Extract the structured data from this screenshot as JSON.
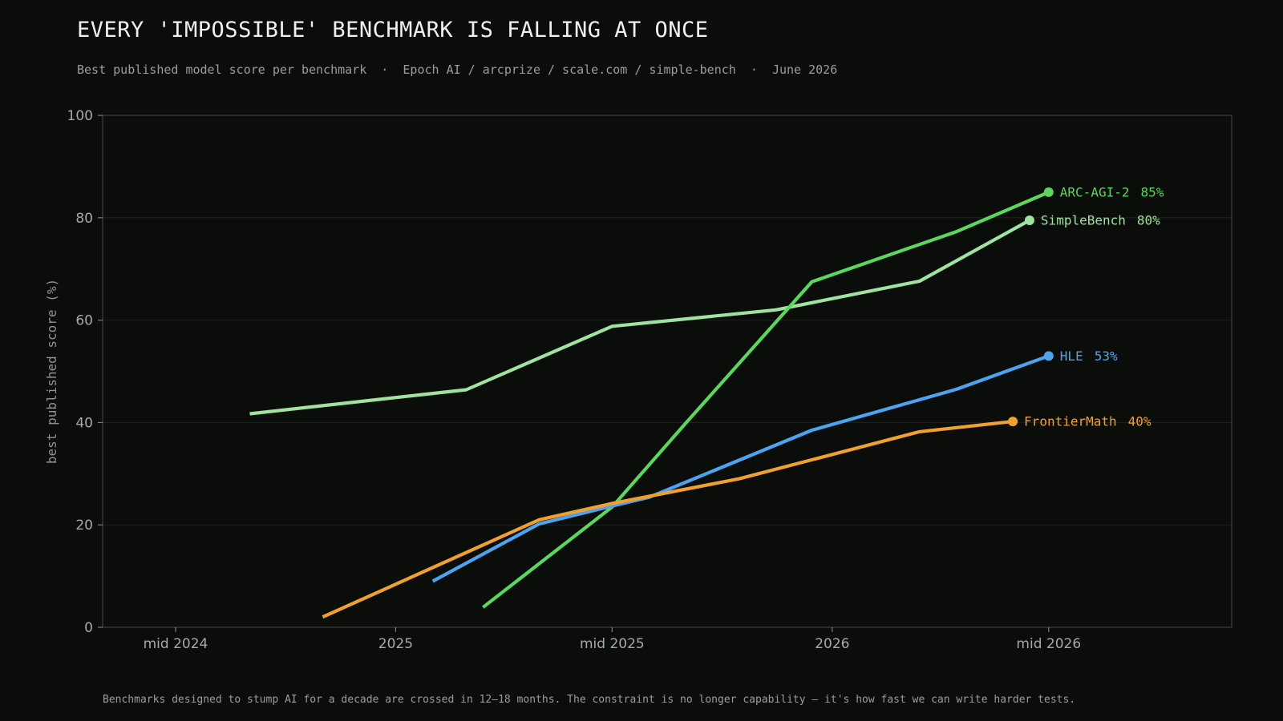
{
  "header": {
    "title": "EVERY 'IMPOSSIBLE' BENCHMARK IS FALLING AT ONCE",
    "subtitle": "Best published model score per benchmark  ·  Epoch AI / arcprize / scale.com / simple-bench  ·  June 2026"
  },
  "footer": {
    "note": "Benchmarks designed to stump AI for a decade are crossed in 12–18 months. The constraint is no longer capability — it's how fast we can write harder tests."
  },
  "chart_data": {
    "type": "line",
    "title": "EVERY 'IMPOSSIBLE' BENCHMARK IS FALLING AT ONCE",
    "subtitle": "Best published model score per benchmark  ·  Epoch AI / arcprize / scale.com / simple-bench  ·  June 2026",
    "xlabel": "",
    "ylabel": "best published score (%)",
    "xlim": [
      "2024-05-01",
      "2026-12-01"
    ],
    "ylim": [
      0,
      100
    ],
    "x_ticks": [
      {
        "date": "2024-07-01",
        "label": "mid 2024"
      },
      {
        "date": "2025-01-01",
        "label": "2025"
      },
      {
        "date": "2025-07-01",
        "label": "mid 2025"
      },
      {
        "date": "2026-01-01",
        "label": "2026"
      },
      {
        "date": "2026-07-01",
        "label": "mid 2026"
      }
    ],
    "y_ticks": [
      0,
      20,
      40,
      60,
      80,
      100
    ],
    "grid": "horizontal",
    "end_labels": true,
    "series": [
      {
        "name": "SimpleBench",
        "end_label": "80%",
        "color": "#9fe39f",
        "points": [
          {
            "x": "2024-09-01",
            "y": 41.7
          },
          {
            "x": "2025-03-01",
            "y": 46.4
          },
          {
            "x": "2025-07-01",
            "y": 58.8
          },
          {
            "x": "2025-11-15",
            "y": 62.0
          },
          {
            "x": "2026-03-15",
            "y": 67.6
          },
          {
            "x": "2026-06-15",
            "y": 79.5
          }
        ]
      },
      {
        "name": "ARC-AGI-2",
        "end_label": "85%",
        "color": "#5cd65c",
        "points": [
          {
            "x": "2025-03-15",
            "y": 3.9
          },
          {
            "x": "2025-07-01",
            "y": 23.5
          },
          {
            "x": "2025-09-01",
            "y": 40.0
          },
          {
            "x": "2025-12-15",
            "y": 67.5
          },
          {
            "x": "2026-04-15",
            "y": 77.3
          },
          {
            "x": "2026-07-01",
            "y": 85.0
          }
        ]
      },
      {
        "name": "HLE",
        "end_label": "53%",
        "color": "#4da3f0",
        "points": [
          {
            "x": "2025-02-01",
            "y": 9.0
          },
          {
            "x": "2025-05-01",
            "y": 20.2
          },
          {
            "x": "2025-07-01",
            "y": 23.7
          },
          {
            "x": "2025-08-01",
            "y": 25.4
          },
          {
            "x": "2025-12-15",
            "y": 38.5
          },
          {
            "x": "2026-04-15",
            "y": 46.5
          },
          {
            "x": "2026-07-01",
            "y": 53.0
          }
        ]
      },
      {
        "name": "FrontierMath",
        "end_label": "40%",
        "color": "#f0a030",
        "points": [
          {
            "x": "2024-11-01",
            "y": 2.0
          },
          {
            "x": "2025-05-01",
            "y": 21.0
          },
          {
            "x": "2025-07-01",
            "y": 24.2
          },
          {
            "x": "2025-10-15",
            "y": 29.0
          },
          {
            "x": "2026-03-15",
            "y": 38.2
          },
          {
            "x": "2026-06-01",
            "y": 40.2
          }
        ]
      }
    ]
  }
}
